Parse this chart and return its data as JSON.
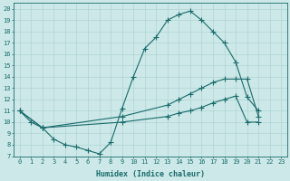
{
  "xlabel": "Humidex (Indice chaleur)",
  "xlim": [
    -0.5,
    23.5
  ],
  "ylim": [
    7,
    20.5
  ],
  "yticks": [
    7,
    8,
    9,
    10,
    11,
    12,
    13,
    14,
    15,
    16,
    17,
    18,
    19,
    20
  ],
  "xticks": [
    0,
    1,
    2,
    3,
    4,
    5,
    6,
    7,
    8,
    9,
    10,
    11,
    12,
    13,
    14,
    15,
    16,
    17,
    18,
    19,
    20,
    21,
    22,
    23
  ],
  "bg_color": "#cce8e8",
  "grid_color": "#aad0d0",
  "line_color": "#1a6b6b",
  "line1_x": [
    0,
    1,
    2,
    3,
    4,
    5,
    6,
    7,
    8,
    9,
    10,
    11,
    12,
    13,
    14,
    15,
    16,
    17,
    18,
    19,
    20,
    21
  ],
  "line1_y": [
    11.0,
    10.0,
    9.5,
    8.5,
    8.0,
    7.8,
    7.5,
    7.2,
    8.2,
    11.2,
    14.0,
    16.5,
    17.5,
    19.0,
    19.5,
    19.8,
    19.0,
    18.0,
    17.0,
    15.3,
    12.2,
    11.0
  ],
  "line2_x": [
    0,
    2,
    9,
    13,
    14,
    15,
    16,
    17,
    18,
    19,
    20,
    21
  ],
  "line2_y": [
    11.0,
    9.5,
    10.5,
    11.5,
    12.0,
    12.5,
    13.0,
    13.5,
    13.8,
    13.8,
    13.8,
    10.5
  ],
  "line3_x": [
    0,
    2,
    9,
    13,
    14,
    15,
    16,
    17,
    18,
    19,
    20,
    21
  ],
  "line3_y": [
    11.0,
    9.5,
    10.0,
    10.5,
    10.8,
    11.0,
    11.3,
    11.7,
    12.0,
    12.3,
    10.0,
    10.0
  ]
}
